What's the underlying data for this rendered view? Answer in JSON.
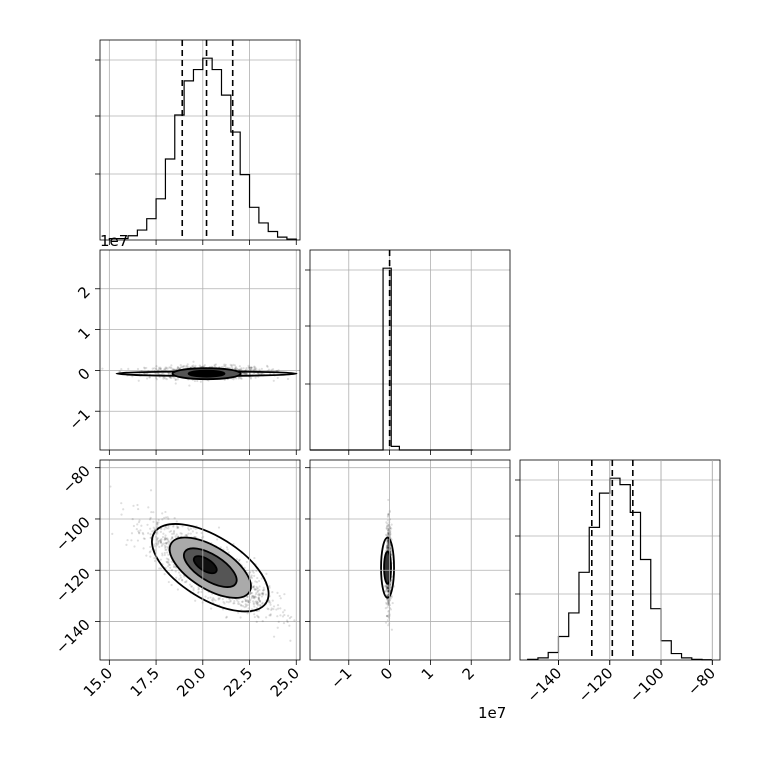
{
  "chart_data": {
    "type": "corner",
    "grid": true,
    "x_offset_text": "1e7",
    "y_offset_text": "1e7",
    "param1": {
      "range": [
        14.5,
        25.2
      ],
      "ticks": [
        15.0,
        17.5,
        20.0,
        22.5,
        25.0
      ],
      "tick_labels": [
        "15.0",
        "17.5",
        "20.0",
        "22.5",
        "25.0"
      ],
      "quantiles": [
        18.9,
        20.2,
        21.6
      ],
      "hist_edges": [
        15.0,
        15.5,
        16.0,
        16.5,
        17.0,
        17.5,
        18.0,
        18.5,
        19.0,
        19.5,
        20.0,
        20.5,
        21.0,
        21.5,
        22.0,
        22.5,
        23.0,
        23.5,
        24.0,
        24.5,
        25.0
      ],
      "hist_counts": [
        0.5,
        0.5,
        1.5,
        3.5,
        7.5,
        14.5,
        28.5,
        44,
        56,
        60,
        64,
        60,
        51,
        38,
        23,
        11.5,
        6,
        3,
        1,
        0.3
      ]
    },
    "param2": {
      "range": [
        -19500000.0,
        29500000.0
      ],
      "ticks": [
        -10000000.0,
        0,
        10000000.0,
        20000000.0
      ],
      "tick_labels": [
        "−1",
        "0",
        "1",
        "2"
      ],
      "quantiles": [
        0
      ],
      "hist_edges": [
        -19500000.0,
        -17600000.0,
        -15600000.0,
        -13600000.0,
        -11600000.0,
        -9600000.0,
        -7600000.0,
        -5600000.0,
        -3600000.0,
        -1600000.0,
        400000.0,
        2400000.0,
        4400000.0,
        6400000.0,
        8400000.0,
        10400000.0,
        12400000.0,
        14400000.0,
        16400000.0,
        18400000.0,
        20400000.0
      ],
      "hist_counts": [
        0,
        0,
        0,
        0,
        0,
        0,
        0,
        0,
        0,
        100,
        2,
        0,
        0,
        0,
        0,
        0,
        0,
        0,
        0,
        0
      ]
    },
    "param3": {
      "range": [
        -155,
        -77
      ],
      "ticks": [
        -140,
        -120,
        -100,
        -80
      ],
      "tick_labels": [
        "−140",
        "−120",
        "−100",
        "−80"
      ],
      "quantiles": [
        -127,
        -119,
        -111
      ],
      "hist_edges": [
        -152,
        -148,
        -144,
        -140,
        -136,
        -132,
        -128,
        -124,
        -120,
        -116,
        -112,
        -108,
        -104,
        -100,
        -96,
        -92,
        -88,
        -84,
        -80
      ],
      "hist_counts": [
        0.3,
        1,
        3.5,
        11,
        22,
        41,
        62,
        78,
        85,
        82,
        69,
        47,
        24,
        9,
        3,
        1,
        0.3,
        0.1
      ]
    }
  }
}
